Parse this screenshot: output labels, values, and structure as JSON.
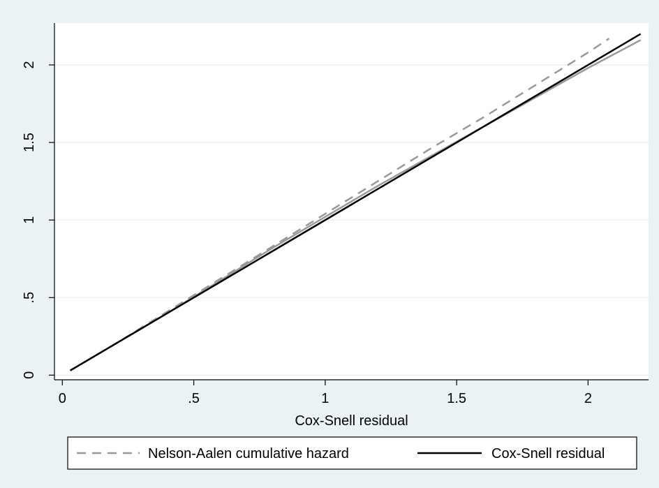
{
  "chart_data": {
    "type": "line",
    "title": "",
    "xlabel": "Cox-Snell residual",
    "ylabel": "",
    "xlim": [
      -0.03,
      2.23
    ],
    "ylim": [
      -0.03,
      2.27
    ],
    "x_ticks": [
      0,
      0.5,
      1,
      1.5,
      2
    ],
    "x_tick_labels": [
      "0",
      ".5",
      "1",
      "1.5",
      "2"
    ],
    "y_ticks": [
      0,
      0.5,
      1,
      1.5,
      2
    ],
    "y_tick_labels": [
      "0",
      ".5",
      "1",
      "1.5",
      "2"
    ],
    "grid": true,
    "legend_position": "bottom",
    "colors": {
      "background": "#eaf2f3",
      "plot_background": "#ffffff",
      "grid": "#eaf2f3",
      "nelson_aalen": "#999999",
      "cox_snell": "#000000"
    },
    "series": [
      {
        "name": "Nelson-Aalen cumulative hazard",
        "style": "dashed",
        "x": [
          0.03,
          0.2,
          0.4,
          0.6,
          0.8,
          1.0,
          1.2,
          1.4,
          1.6,
          1.8,
          2.0,
          2.08
        ],
        "y": [
          0.03,
          0.2,
          0.41,
          0.62,
          0.83,
          1.04,
          1.25,
          1.46,
          1.66,
          1.87,
          2.08,
          2.17
        ]
      },
      {
        "name": "Nelson-Aalen cumulative hazard",
        "style": "dashed",
        "x": [
          0.03,
          0.2,
          0.4,
          0.6,
          0.8,
          1.0,
          1.2,
          1.4,
          1.6,
          1.8,
          2.0,
          2.2
        ],
        "y": [
          0.03,
          0.2,
          0.4,
          0.61,
          0.82,
          1.02,
          1.22,
          1.41,
          1.6,
          1.79,
          1.98,
          2.16
        ]
      },
      {
        "name": "Cox-Snell residual",
        "style": "solid",
        "x": [
          0.03,
          2.2
        ],
        "y": [
          0.03,
          2.2
        ]
      }
    ],
    "legend": [
      {
        "label": "Nelson-Aalen cumulative hazard",
        "style": "dashed",
        "color": "#999999"
      },
      {
        "label": "Cox-Snell residual",
        "style": "solid",
        "color": "#000000"
      }
    ]
  }
}
